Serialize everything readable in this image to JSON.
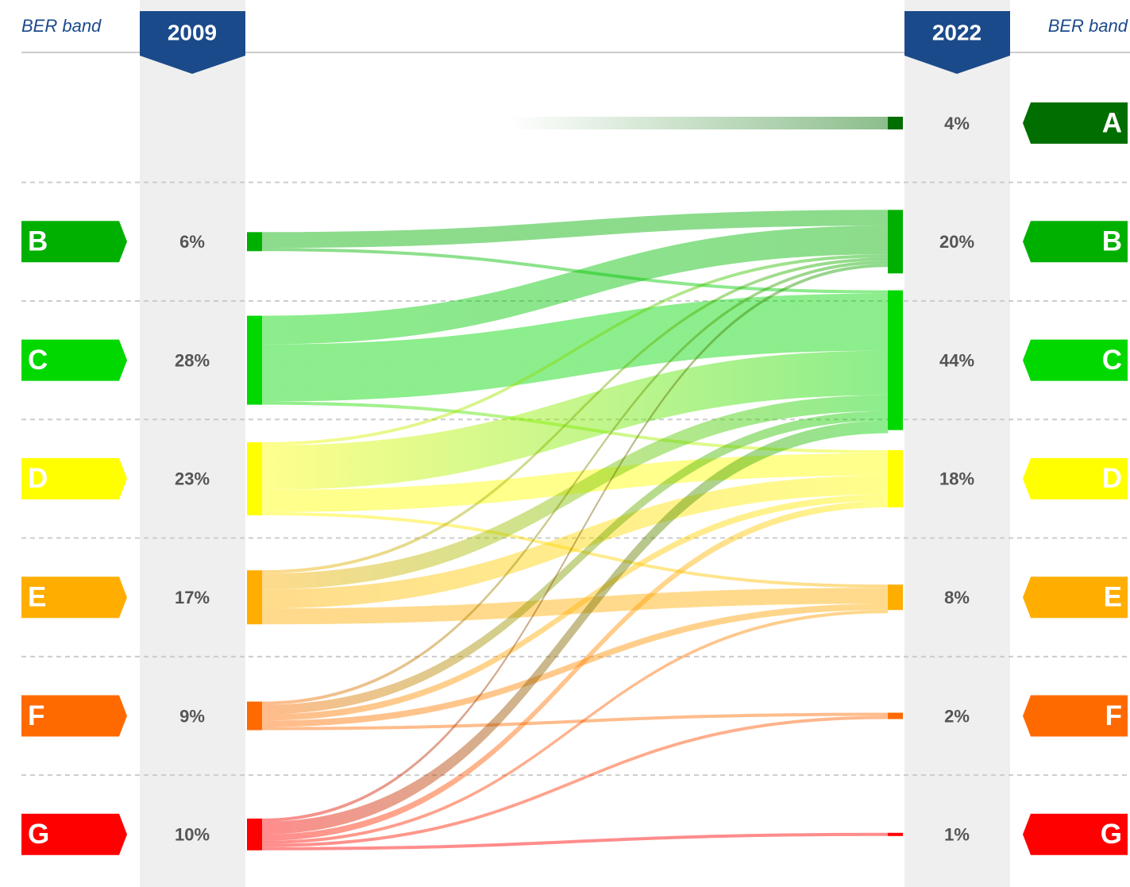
{
  "chart_data": {
    "type": "sankey",
    "left_header": "BER band",
    "right_header": "BER band",
    "source_year": "2009",
    "target_year": "2022",
    "sources": [
      {
        "band": "B",
        "value": 6,
        "value_label": "6%",
        "color": "#00b000"
      },
      {
        "band": "C",
        "value": 28,
        "value_label": "28%",
        "color": "#00d800"
      },
      {
        "band": "D",
        "value": 23,
        "value_label": "23%",
        "color": "#ffff00"
      },
      {
        "band": "E",
        "value": 17,
        "value_label": "17%",
        "color": "#ffae00"
      },
      {
        "band": "F",
        "value": 9,
        "value_label": "9%",
        "color": "#ff6a00"
      },
      {
        "band": "G",
        "value": 10,
        "value_label": "10%",
        "color": "#ff0000"
      }
    ],
    "targets": [
      {
        "band": "A",
        "value": 4,
        "value_label": "4%",
        "color": "#006e00"
      },
      {
        "band": "B",
        "value": 20,
        "value_label": "20%",
        "color": "#00b000"
      },
      {
        "band": "C",
        "value": 44,
        "value_label": "44%",
        "color": "#00d800"
      },
      {
        "band": "D",
        "value": 18,
        "value_label": "18%",
        "color": "#ffff00"
      },
      {
        "band": "E",
        "value": 8,
        "value_label": "8%",
        "color": "#ffae00"
      },
      {
        "band": "F",
        "value": 2,
        "value_label": "2%",
        "color": "#ff6a00"
      },
      {
        "band": "G",
        "value": 1,
        "value_label": "1%",
        "color": "#ff0000"
      }
    ],
    "links": [
      {
        "source": "B",
        "target": "B",
        "value": 5
      },
      {
        "source": "B",
        "target": "C",
        "value": 1
      },
      {
        "source": "C",
        "target": "B",
        "value": 9
      },
      {
        "source": "C",
        "target": "C",
        "value": 18
      },
      {
        "source": "C",
        "target": "D",
        "value": 1
      },
      {
        "source": "D",
        "target": "B",
        "value": 1
      },
      {
        "source": "D",
        "target": "C",
        "value": 14
      },
      {
        "source": "D",
        "target": "D",
        "value": 7
      },
      {
        "source": "D",
        "target": "E",
        "value": 1
      },
      {
        "source": "E",
        "target": "B",
        "value": 1
      },
      {
        "source": "E",
        "target": "C",
        "value": 5
      },
      {
        "source": "E",
        "target": "D",
        "value": 6
      },
      {
        "source": "E",
        "target": "E",
        "value": 5
      },
      {
        "source": "F",
        "target": "B",
        "value": 1
      },
      {
        "source": "F",
        "target": "C",
        "value": 3
      },
      {
        "source": "F",
        "target": "D",
        "value": 2
      },
      {
        "source": "F",
        "target": "E",
        "value": 2
      },
      {
        "source": "F",
        "target": "F",
        "value": 1
      },
      {
        "source": "G",
        "target": "B",
        "value": 1
      },
      {
        "source": "G",
        "target": "C",
        "value": 4
      },
      {
        "source": "G",
        "target": "D",
        "value": 2
      },
      {
        "source": "G",
        "target": "E",
        "value": 1
      },
      {
        "source": "G",
        "target": "F",
        "value": 1
      },
      {
        "source": "G",
        "target": "G",
        "value": 1
      }
    ]
  }
}
